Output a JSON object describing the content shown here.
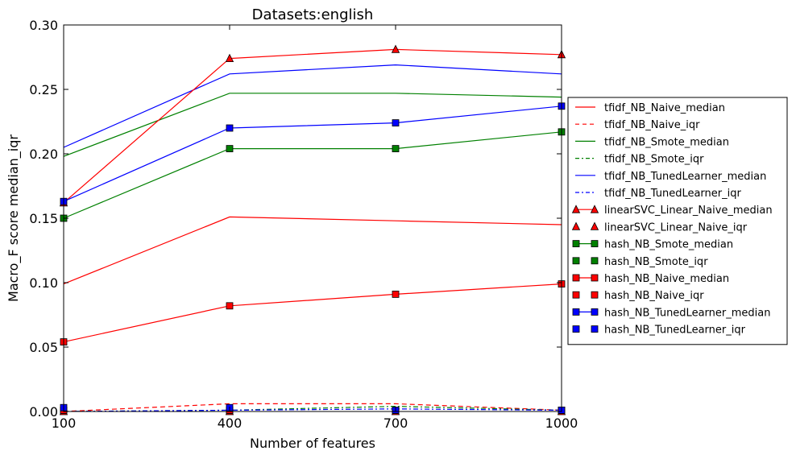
{
  "chart_data": {
    "type": "line",
    "title": "Datasets:english",
    "xlabel": "Number of features",
    "ylabel": "Macro_F score median_iqr",
    "x": [
      100,
      400,
      700,
      1000
    ],
    "x_ticks": [
      "100",
      "400",
      "700",
      "1000"
    ],
    "ylim": [
      0,
      0.3
    ],
    "y_ticks": [
      "0.00",
      "0.05",
      "0.10",
      "0.15",
      "0.20",
      "0.25",
      "0.30"
    ],
    "grid": false,
    "legend_position": "outside-right",
    "series": [
      {
        "name": "tfidf_NB_Naive_median",
        "color": "#ff0000",
        "dash": "solid",
        "marker": "none",
        "line": true,
        "values": [
          0.099,
          0.151,
          0.148,
          0.145
        ]
      },
      {
        "name": "tfidf_NB_Naive_iqr",
        "color": "#ff0000",
        "dash": "dashed",
        "marker": "none",
        "line": true,
        "values": [
          0.0,
          0.006,
          0.006,
          0.001
        ]
      },
      {
        "name": "tfidf_NB_Smote_median",
        "color": "#008000",
        "dash": "solid",
        "marker": "none",
        "line": true,
        "values": [
          0.198,
          0.247,
          0.247,
          0.244
        ]
      },
      {
        "name": "tfidf_NB_Smote_iqr",
        "color": "#008000",
        "dash": "dashdot",
        "marker": "none",
        "line": true,
        "values": [
          0.0,
          0.001,
          0.004,
          0.001
        ]
      },
      {
        "name": "tfidf_NB_TunedLearner_median",
        "color": "#0000ff",
        "dash": "solid",
        "marker": "none",
        "line": true,
        "values": [
          0.205,
          0.262,
          0.269,
          0.262
        ]
      },
      {
        "name": "tfidf_NB_TunedLearner_iqr",
        "color": "#0000ff",
        "dash": "dashdot",
        "marker": "none",
        "line": true,
        "values": [
          0.0,
          0.001,
          0.002,
          0.001
        ]
      },
      {
        "name": "linearSVC_Linear_Naive_median",
        "color": "#ff0000",
        "dash": "solid",
        "marker": "triangle",
        "line": true,
        "values": [
          0.162,
          0.274,
          0.281,
          0.277
        ]
      },
      {
        "name": "linearSVC_Linear_Naive_iqr",
        "color": "#ff0000",
        "dash": "none",
        "marker": "triangle",
        "line": false,
        "values": [
          0.0,
          0.0,
          0.0,
          0.0
        ]
      },
      {
        "name": "hash_NB_Smote_median",
        "color": "#008000",
        "dash": "solid",
        "marker": "square",
        "line": true,
        "values": [
          0.15,
          0.204,
          0.204,
          0.217
        ]
      },
      {
        "name": "hash_NB_Smote_iqr",
        "color": "#008000",
        "dash": "none",
        "marker": "square",
        "line": false,
        "values": [
          0.001,
          0.001,
          0.001,
          0.001
        ]
      },
      {
        "name": "hash_NB_Naive_median",
        "color": "#ff0000",
        "dash": "solid",
        "marker": "square",
        "line": true,
        "values": [
          0.054,
          0.082,
          0.091,
          0.099
        ]
      },
      {
        "name": "hash_NB_Naive_iqr",
        "color": "#ff0000",
        "dash": "none",
        "marker": "square",
        "line": false,
        "values": [
          0.001,
          0.001,
          0.001,
          0.001
        ]
      },
      {
        "name": "hash_NB_TunedLearner_median",
        "color": "#0000ff",
        "dash": "solid",
        "marker": "square",
        "line": true,
        "values": [
          0.163,
          0.22,
          0.224,
          0.237
        ]
      },
      {
        "name": "hash_NB_TunedLearner_iqr",
        "color": "#0000ff",
        "dash": "none",
        "marker": "square",
        "line": false,
        "values": [
          0.003,
          0.003,
          0.001,
          0.001
        ]
      }
    ]
  }
}
